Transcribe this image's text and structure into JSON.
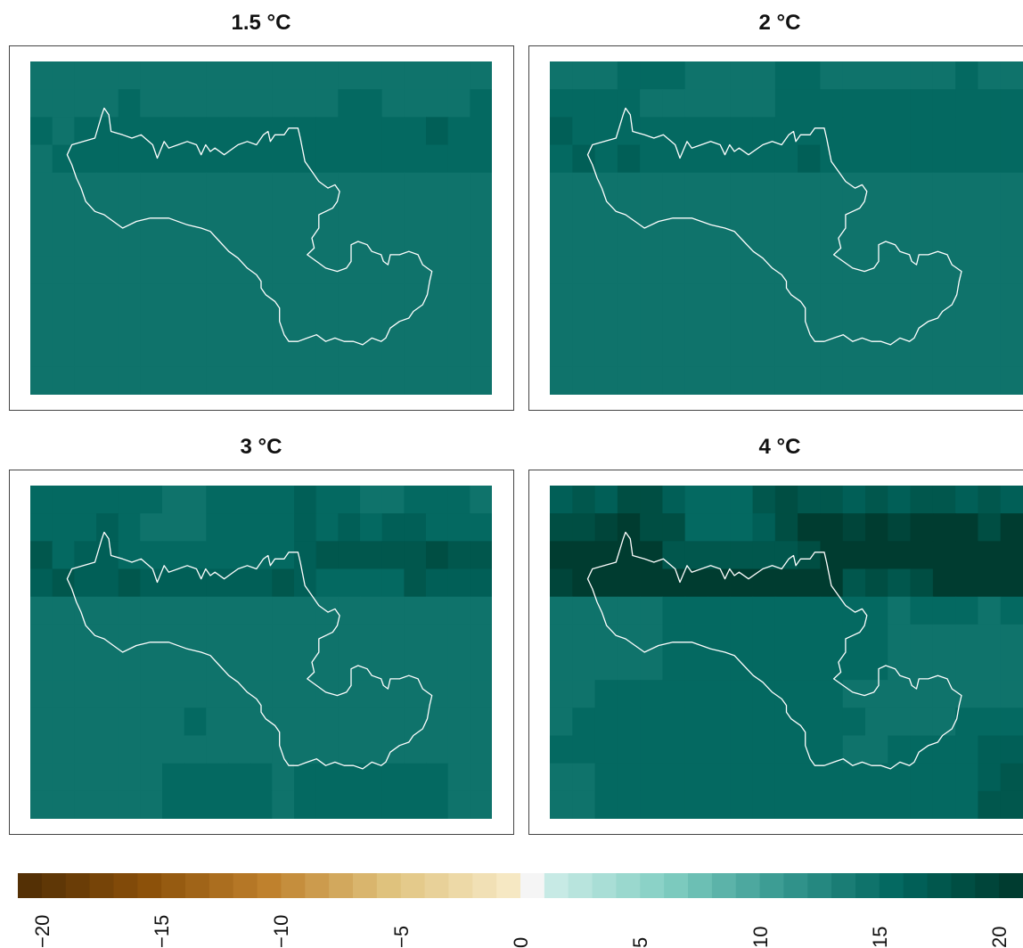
{
  "panels": [
    {
      "title": "1.5 °C",
      "key": "p15"
    },
    {
      "title": "2 °C",
      "key": "p2"
    },
    {
      "title": "3 °C",
      "key": "p3"
    },
    {
      "title": "4 °C",
      "key": "p4"
    }
  ],
  "legend": {
    "min": -21,
    "max": 21,
    "ticks": [
      "−20",
      "−15",
      "−10",
      "−5",
      "0",
      "5",
      "10",
      "15",
      "20"
    ],
    "neutral_color": "#f5f5f5",
    "negative_dark": "#543005",
    "positive_dark": "#003c30"
  },
  "grids": {
    "p15": [
      [
        14,
        14,
        14,
        14,
        14,
        14,
        14,
        14,
        14,
        14,
        14,
        14,
        14,
        14,
        14,
        14,
        14,
        14,
        14,
        14,
        14
      ],
      [
        14,
        14,
        14,
        14,
        15,
        14,
        14,
        14,
        14,
        14,
        14,
        14,
        14,
        14,
        15,
        15,
        14,
        14,
        14,
        14,
        15
      ],
      [
        15,
        14,
        15,
        15,
        15,
        15,
        15,
        15,
        15,
        15,
        15,
        15,
        15,
        15,
        15,
        15,
        15,
        15,
        16,
        15,
        15
      ],
      [
        14,
        15,
        15,
        15,
        15,
        15,
        15,
        15,
        15,
        15,
        15,
        15,
        15,
        15,
        15,
        15,
        15,
        15,
        15,
        15,
        15
      ],
      [
        14,
        14,
        14,
        14,
        14,
        14,
        14,
        14,
        14,
        14,
        14,
        14,
        14,
        14,
        14,
        14,
        14,
        14,
        14,
        14,
        14
      ],
      [
        14,
        14,
        14,
        14,
        14,
        14,
        14,
        14,
        14,
        14,
        14,
        14,
        14,
        14,
        14,
        14,
        14,
        14,
        14,
        14,
        14
      ],
      [
        14,
        14,
        14,
        14,
        14,
        14,
        14,
        14,
        14,
        14,
        14,
        14,
        14,
        14,
        14,
        14,
        14,
        14,
        14,
        14,
        14
      ],
      [
        14,
        14,
        14,
        14,
        14,
        14,
        14,
        14,
        14,
        14,
        14,
        14,
        14,
        14,
        14,
        14,
        14,
        14,
        14,
        14,
        14
      ],
      [
        14,
        14,
        14,
        14,
        14,
        14,
        14,
        14,
        14,
        14,
        14,
        14,
        14,
        14,
        14,
        14,
        14,
        14,
        14,
        14,
        14
      ],
      [
        14,
        14,
        14,
        14,
        14,
        14,
        14,
        14,
        14,
        14,
        14,
        14,
        14,
        14,
        14,
        14,
        14,
        14,
        14,
        14,
        14
      ],
      [
        14,
        14,
        14,
        14,
        14,
        14,
        14,
        14,
        14,
        14,
        14,
        14,
        14,
        14,
        14,
        14,
        14,
        14,
        14,
        14,
        14
      ],
      [
        14,
        14,
        14,
        14,
        14,
        14,
        14,
        14,
        14,
        14,
        14,
        14,
        14,
        14,
        14,
        14,
        14,
        14,
        14,
        14,
        14
      ]
    ],
    "p2": [
      [
        14,
        14,
        14,
        15,
        15,
        15,
        14,
        14,
        14,
        14,
        15,
        15,
        14,
        14,
        14,
        14,
        14,
        14,
        15,
        14,
        14
      ],
      [
        15,
        15,
        15,
        15,
        14,
        14,
        14,
        14,
        14,
        14,
        15,
        15,
        15,
        15,
        15,
        15,
        15,
        15,
        15,
        15,
        15
      ],
      [
        16,
        15,
        15,
        15,
        15,
        15,
        15,
        15,
        15,
        15,
        15,
        15,
        15,
        15,
        15,
        15,
        15,
        15,
        15,
        15,
        15
      ],
      [
        15,
        16,
        15,
        16,
        15,
        15,
        15,
        15,
        15,
        15,
        15,
        16,
        15,
        15,
        15,
        15,
        15,
        15,
        15,
        15,
        15
      ],
      [
        14,
        14,
        14,
        14,
        14,
        14,
        14,
        14,
        14,
        14,
        14,
        14,
        14,
        14,
        14,
        14,
        14,
        14,
        14,
        14,
        14
      ],
      [
        14,
        14,
        14,
        14,
        14,
        14,
        14,
        14,
        14,
        14,
        14,
        14,
        14,
        14,
        14,
        14,
        14,
        14,
        14,
        14,
        14
      ],
      [
        14,
        14,
        14,
        14,
        14,
        14,
        14,
        14,
        14,
        14,
        14,
        14,
        14,
        14,
        14,
        14,
        14,
        14,
        14,
        14,
        14
      ],
      [
        14,
        14,
        14,
        14,
        14,
        14,
        14,
        14,
        14,
        14,
        14,
        14,
        14,
        14,
        14,
        14,
        14,
        14,
        14,
        14,
        14
      ],
      [
        14,
        14,
        14,
        14,
        14,
        14,
        14,
        14,
        14,
        14,
        14,
        14,
        14,
        14,
        14,
        14,
        14,
        14,
        14,
        14,
        14
      ],
      [
        14,
        14,
        14,
        14,
        14,
        14,
        14,
        14,
        14,
        14,
        14,
        14,
        14,
        14,
        14,
        14,
        14,
        14,
        14,
        14,
        14
      ],
      [
        14,
        14,
        14,
        14,
        14,
        14,
        14,
        14,
        14,
        14,
        14,
        14,
        14,
        14,
        14,
        14,
        14,
        14,
        14,
        14,
        14
      ],
      [
        14,
        14,
        14,
        14,
        14,
        14,
        14,
        14,
        14,
        14,
        14,
        14,
        14,
        14,
        14,
        14,
        14,
        14,
        14,
        14,
        14
      ]
    ],
    "p3": [
      [
        15,
        15,
        15,
        15,
        15,
        15,
        14,
        14,
        15,
        15,
        15,
        15,
        16,
        15,
        15,
        14,
        14,
        15,
        15,
        15,
        14
      ],
      [
        15,
        15,
        15,
        16,
        15,
        14,
        14,
        14,
        15,
        15,
        15,
        15,
        16,
        15,
        16,
        15,
        16,
        16,
        15,
        15,
        15
      ],
      [
        17,
        15,
        16,
        16,
        15,
        15,
        15,
        15,
        15,
        15,
        15,
        15,
        16,
        17,
        17,
        17,
        17,
        17,
        18,
        17,
        17
      ],
      [
        16,
        17,
        16,
        16,
        17,
        16,
        16,
        16,
        16,
        16,
        16,
        17,
        16,
        15,
        15,
        15,
        15,
        17,
        16,
        16,
        16
      ],
      [
        14,
        14,
        14,
        14,
        14,
        14,
        14,
        14,
        14,
        14,
        14,
        14,
        14,
        14,
        14,
        14,
        14,
        14,
        14,
        14,
        14
      ],
      [
        14,
        14,
        14,
        14,
        14,
        14,
        14,
        14,
        14,
        14,
        14,
        14,
        14,
        14,
        14,
        14,
        14,
        14,
        14,
        14,
        14
      ],
      [
        14,
        14,
        14,
        14,
        14,
        14,
        14,
        14,
        14,
        14,
        14,
        14,
        14,
        14,
        14,
        14,
        14,
        14,
        14,
        14,
        14
      ],
      [
        14,
        14,
        14,
        14,
        14,
        14,
        14,
        14,
        14,
        14,
        14,
        14,
        14,
        14,
        14,
        14,
        14,
        14,
        14,
        14,
        14
      ],
      [
        14,
        14,
        14,
        14,
        14,
        14,
        14,
        15,
        14,
        14,
        14,
        14,
        14,
        14,
        14,
        14,
        14,
        14,
        14,
        14,
        14
      ],
      [
        14,
        14,
        14,
        14,
        14,
        14,
        14,
        14,
        14,
        14,
        14,
        14,
        14,
        14,
        14,
        14,
        14,
        14,
        14,
        14,
        14
      ],
      [
        14,
        14,
        14,
        14,
        14,
        14,
        15,
        15,
        15,
        15,
        15,
        14,
        15,
        15,
        15,
        15,
        15,
        15,
        15,
        14,
        14
      ],
      [
        14,
        14,
        14,
        14,
        14,
        14,
        15,
        15,
        15,
        15,
        15,
        14,
        15,
        15,
        15,
        15,
        15,
        15,
        15,
        14,
        14
      ]
    ],
    "p4": [
      [
        16,
        17,
        16,
        18,
        18,
        16,
        15,
        15,
        15,
        17,
        18,
        17,
        17,
        16,
        17,
        16,
        17,
        17,
        16,
        17,
        16
      ],
      [
        18,
        18,
        19,
        20,
        18,
        18,
        15,
        15,
        15,
        16,
        18,
        20,
        20,
        19,
        20,
        19,
        20,
        21,
        20,
        18,
        20
      ],
      [
        20,
        20,
        21,
        21,
        20,
        17,
        17,
        17,
        17,
        17,
        17,
        18,
        21,
        22,
        22,
        22,
        22,
        22,
        23,
        21,
        21
      ],
      [
        19,
        21,
        21,
        21,
        21,
        21,
        20,
        20,
        20,
        20,
        20,
        21,
        21,
        17,
        18,
        17,
        18,
        21,
        20,
        21,
        21
      ],
      [
        14,
        14,
        14,
        14,
        14,
        15,
        15,
        15,
        15,
        15,
        15,
        15,
        15,
        15,
        15,
        14,
        15,
        15,
        15,
        14,
        15
      ],
      [
        14,
        14,
        14,
        14,
        14,
        15,
        15,
        15,
        15,
        15,
        15,
        15,
        15,
        15,
        15,
        14,
        14,
        14,
        14,
        14,
        14
      ],
      [
        14,
        14,
        14,
        14,
        14,
        15,
        15,
        15,
        15,
        15,
        15,
        15,
        15,
        15,
        15,
        14,
        14,
        14,
        14,
        14,
        14
      ],
      [
        14,
        14,
        15,
        15,
        15,
        15,
        15,
        15,
        15,
        15,
        15,
        15,
        15,
        14,
        14,
        14,
        14,
        14,
        14,
        14,
        14
      ],
      [
        14,
        15,
        15,
        15,
        15,
        15,
        15,
        15,
        15,
        15,
        15,
        15,
        15,
        15,
        14,
        14,
        14,
        14,
        15,
        15,
        15
      ],
      [
        15,
        15,
        15,
        15,
        15,
        15,
        15,
        15,
        15,
        15,
        15,
        15,
        15,
        14,
        14,
        15,
        15,
        15,
        15,
        16,
        16
      ],
      [
        14,
        14,
        15,
        15,
        15,
        15,
        15,
        15,
        15,
        15,
        15,
        15,
        15,
        15,
        15,
        15,
        15,
        15,
        15,
        16,
        17
      ],
      [
        14,
        14,
        15,
        15,
        15,
        15,
        15,
        15,
        15,
        15,
        15,
        15,
        15,
        15,
        15,
        15,
        15,
        15,
        15,
        17,
        17
      ]
    ]
  }
}
